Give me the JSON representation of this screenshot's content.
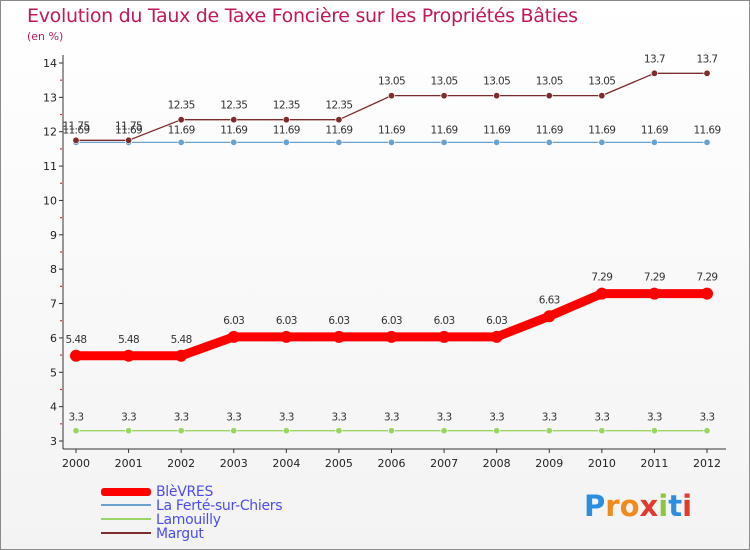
{
  "title": "Evolution du Taux de Taxe Foncière sur les Propriétés Bâties",
  "subtitle": "(en %)",
  "chart_data": {
    "type": "line",
    "x": [
      "2000",
      "2001",
      "2002",
      "2003",
      "2004",
      "2005",
      "2006",
      "2007",
      "2008",
      "2009",
      "2010",
      "2011",
      "2012"
    ],
    "ylim": [
      3,
      14
    ],
    "yticks": [
      "3",
      "4",
      "5",
      "6",
      "7",
      "8",
      "9",
      "10",
      "11",
      "12",
      "13",
      "14"
    ],
    "series": [
      {
        "name": "BlèVRES",
        "color": "#ff0000",
        "values": [
          5.48,
          5.48,
          5.48,
          6.03,
          6.03,
          6.03,
          6.03,
          6.03,
          6.03,
          6.63,
          7.29,
          7.29,
          7.29
        ],
        "labels": [
          "5.48",
          "5.48",
          "5.48",
          "6.03",
          "6.03",
          "6.03",
          "6.03",
          "6.03",
          "6.03",
          "6.63",
          "7.29",
          "7.29",
          "7.29"
        ]
      },
      {
        "name": "La Ferté-sur-Chiers",
        "color": "#6aa1cf",
        "values": [
          11.69,
          11.69,
          11.69,
          11.69,
          11.69,
          11.69,
          11.69,
          11.69,
          11.69,
          11.69,
          11.69,
          11.69,
          11.69
        ],
        "labels": [
          "11.69",
          "11.69",
          "11.69",
          "11.69",
          "11.69",
          "11.69",
          "11.69",
          "11.69",
          "11.69",
          "11.69",
          "11.69",
          "11.69",
          "11.69"
        ]
      },
      {
        "name": "Lamouilly",
        "color": "#9ad466",
        "values": [
          3.3,
          3.3,
          3.3,
          3.3,
          3.3,
          3.3,
          3.3,
          3.3,
          3.3,
          3.3,
          3.3,
          3.3,
          3.3
        ],
        "labels": [
          "3.3",
          "3.3",
          "3.3",
          "3.3",
          "3.3",
          "3.3",
          "3.3",
          "3.3",
          "3.3",
          "3.3",
          "3.3",
          "3.3",
          "3.3"
        ]
      },
      {
        "name": "Margut",
        "color": "#7b2c2c",
        "values": [
          11.75,
          11.75,
          12.35,
          12.35,
          12.35,
          12.35,
          13.05,
          13.05,
          13.05,
          13.05,
          13.05,
          13.7,
          13.7
        ],
        "labels": [
          "11.75",
          "11.75",
          "12.35",
          "12.35",
          "12.35",
          "12.35",
          "13.05",
          "13.05",
          "13.05",
          "13.05",
          "13.05",
          "13.7",
          "13.7"
        ]
      }
    ]
  },
  "logo": {
    "letters": [
      "P",
      "r",
      "o",
      "x",
      "i",
      "t",
      "i"
    ],
    "colors": [
      "#2a8fe0",
      "#f08a1c",
      "#f08a1c",
      "#e23a2e",
      "#8cc63f",
      "#2a8fe0",
      "#e23a2e"
    ]
  }
}
